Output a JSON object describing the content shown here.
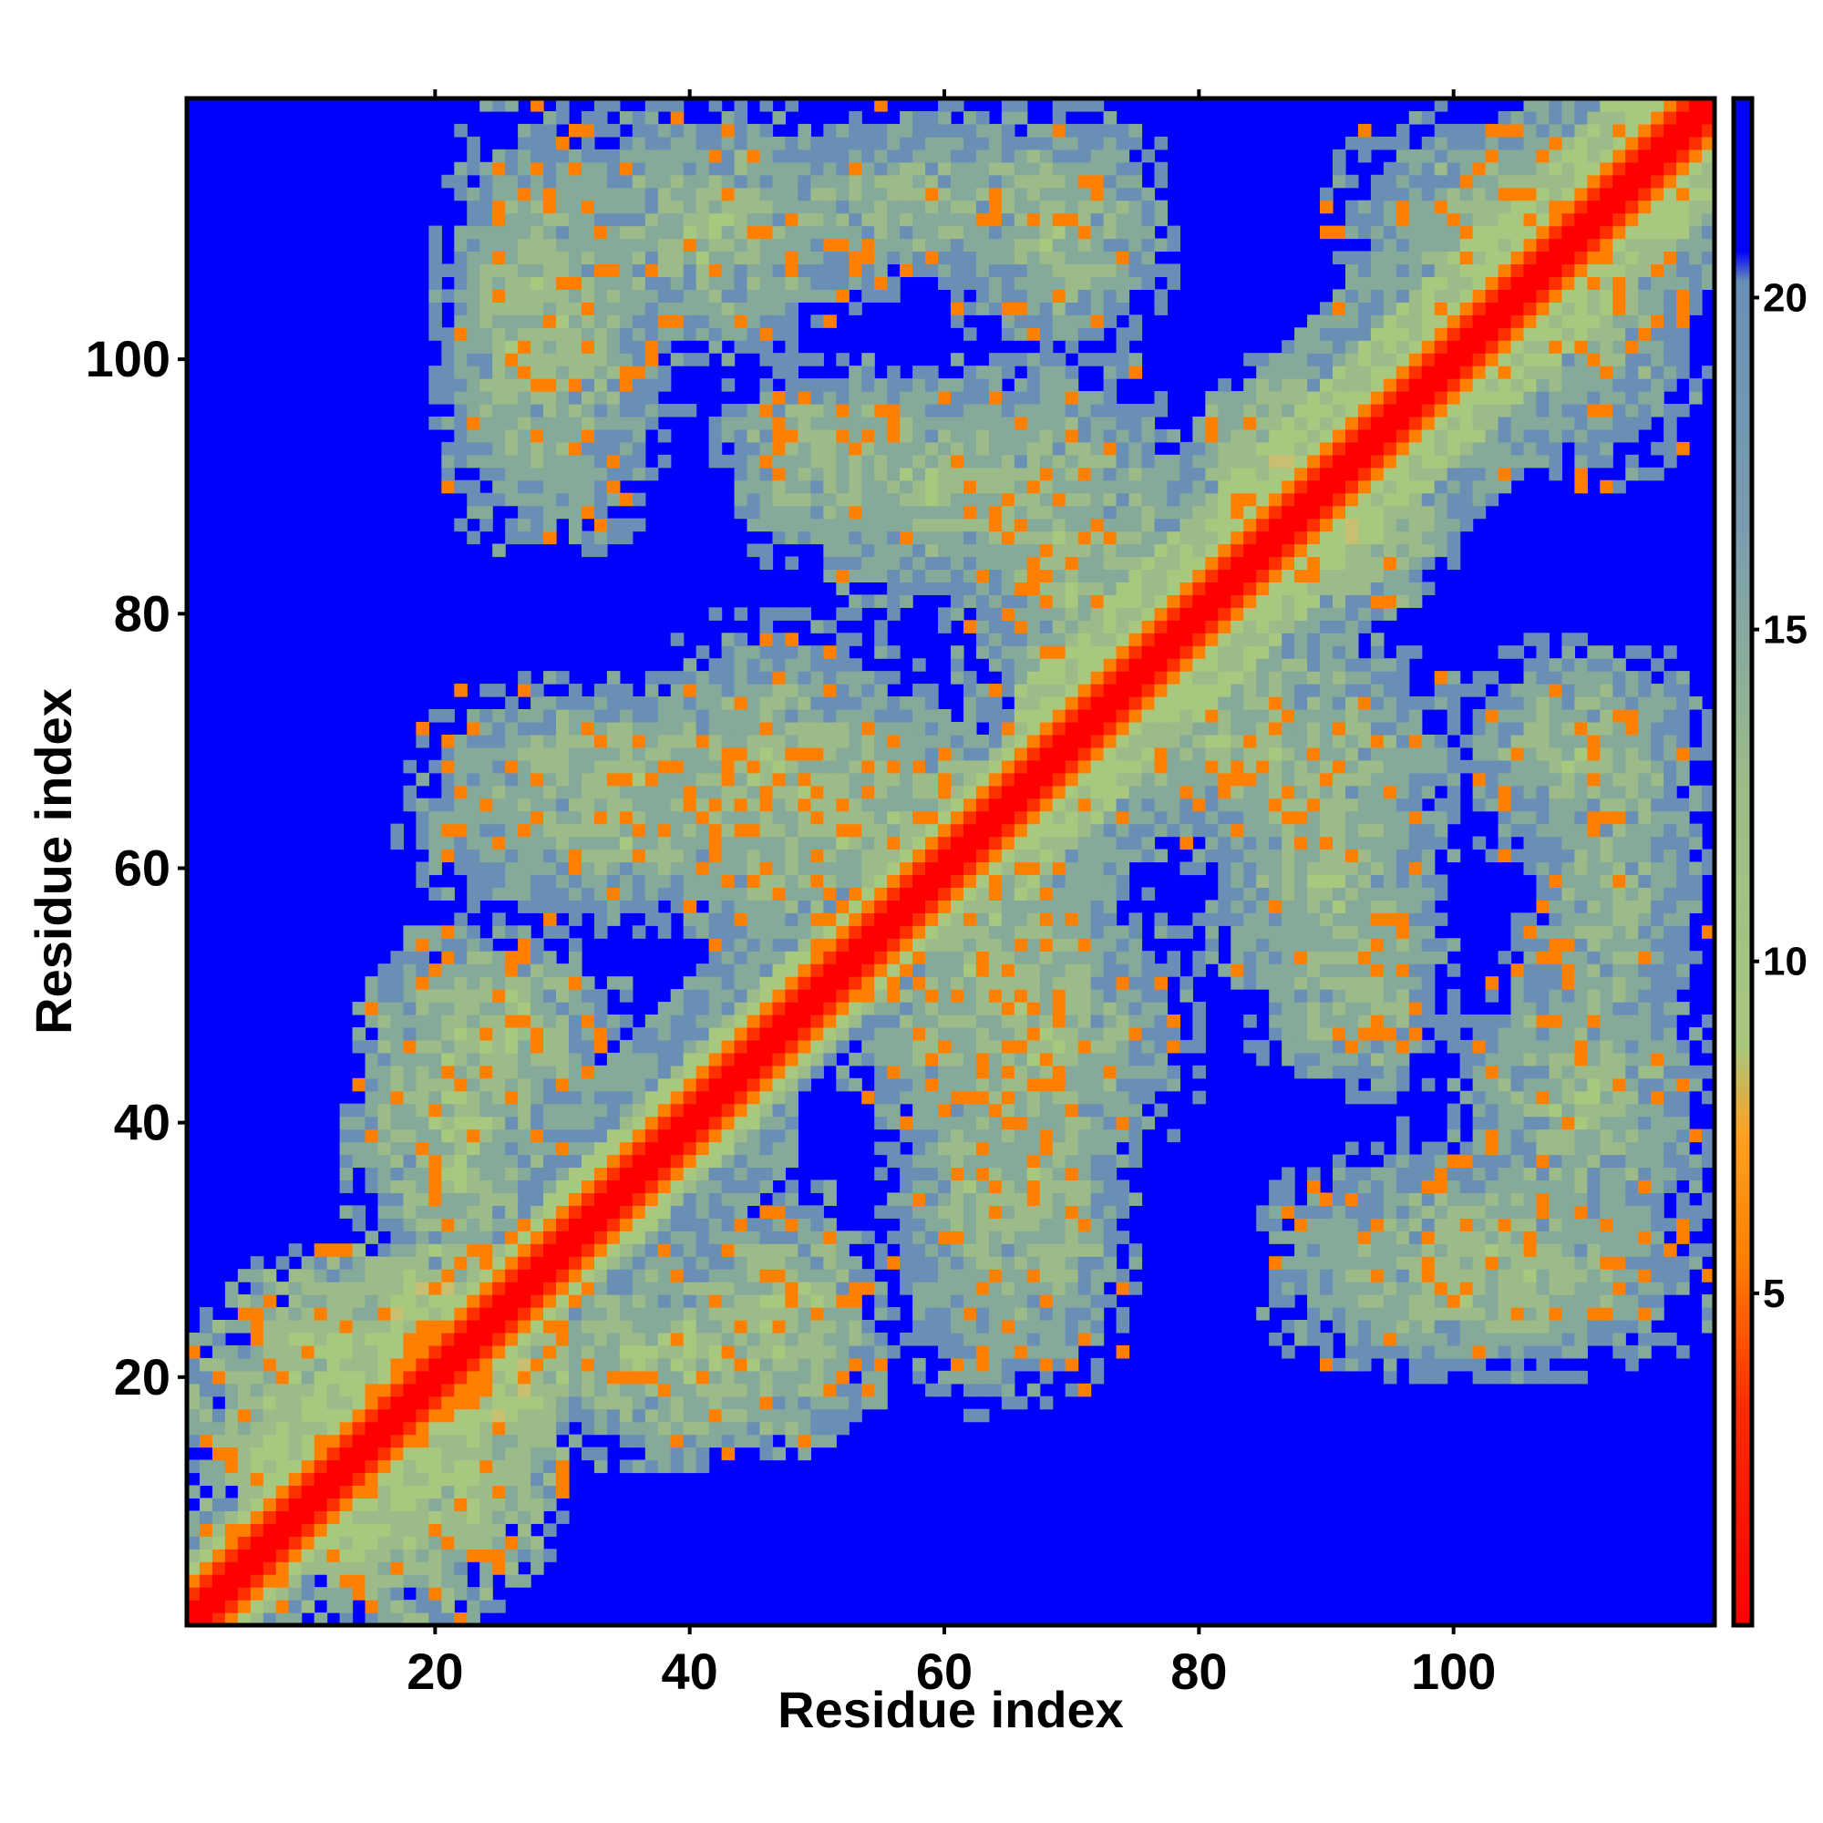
{
  "chart_data": {
    "type": "heatmap",
    "title": "",
    "xlabel": "Residue index",
    "ylabel": "Residue index",
    "n_residues": 120,
    "xlim": [
      1,
      120
    ],
    "ylim": [
      1,
      120
    ],
    "x_ticks": [
      20,
      40,
      60,
      80,
      100
    ],
    "y_ticks": [
      20,
      40,
      60,
      80,
      100
    ],
    "colorbar": {
      "ticks": [
        5,
        10,
        15,
        20
      ],
      "range": [
        0,
        23
      ]
    },
    "colors": {
      "background": "#0000ff",
      "diagonal": "#ff0000",
      "near_contact": "#ff8000",
      "mid": "#a8c880",
      "far": "#6a8fb4"
    },
    "contact_blocks": [
      {
        "x": [
          1,
          30
        ],
        "y": [
          1,
          30
        ],
        "level": 9
      },
      {
        "x": [
          15,
          25
        ],
        "y": [
          15,
          30
        ],
        "level": 6
      },
      {
        "x": [
          15,
          35
        ],
        "y": [
          40,
          55
        ],
        "level": 11
      },
      {
        "x": [
          25,
          55
        ],
        "y": [
          13,
          30
        ],
        "level": 11
      },
      {
        "x": [
          18,
          50
        ],
        "y": [
          60,
          75
        ],
        "level": 12
      },
      {
        "x": [
          20,
          35
        ],
        "y": [
          85,
          120
        ],
        "level": 12
      },
      {
        "x": [
          28,
          55
        ],
        "y": [
          100,
          120
        ],
        "level": 12
      },
      {
        "x": [
          42,
          58
        ],
        "y": [
          85,
          100
        ],
        "level": 12
      },
      {
        "x": [
          38,
          70
        ],
        "y": [
          50,
          75
        ],
        "level": 12
      },
      {
        "x": [
          55,
          70
        ],
        "y": [
          17,
          50
        ],
        "level": 13
      },
      {
        "x": [
          55,
          80
        ],
        "y": [
          35,
          60
        ],
        "level": 12
      },
      {
        "x": [
          60,
          80
        ],
        "y": [
          70,
          100
        ],
        "level": 12
      },
      {
        "x": [
          60,
          78
        ],
        "y": [
          100,
          120
        ],
        "level": 12
      },
      {
        "x": [
          80,
          100
        ],
        "y": [
          45,
          75
        ],
        "level": 12
      },
      {
        "x": [
          85,
          120
        ],
        "y": [
          20,
          40
        ],
        "level": 13
      },
      {
        "x": [
          105,
          120
        ],
        "y": [
          40,
          75
        ],
        "level": 13
      },
      {
        "x": [
          90,
          120
        ],
        "y": [
          100,
          120
        ],
        "level": 12
      },
      {
        "x": [
          80,
          100
        ],
        "y": [
          80,
          95
        ],
        "level": 9
      }
    ]
  }
}
